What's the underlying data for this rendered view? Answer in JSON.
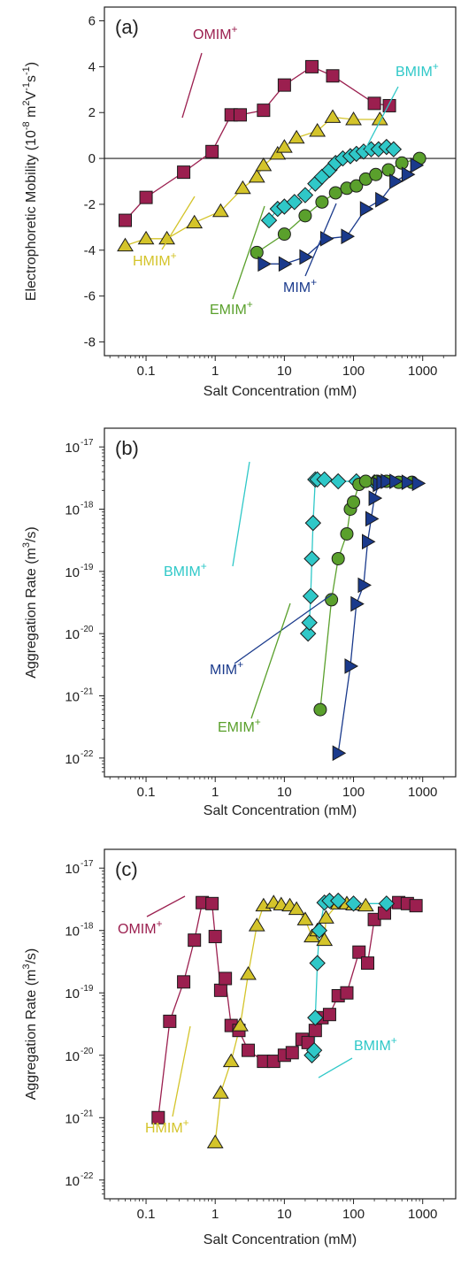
{
  "chart_data": [
    {
      "type": "scatter",
      "panel_label": "(a)",
      "ylabel": "Electrophoretic Mobility (10^-8 m^2 V^-1 s^-1)",
      "ylabel_parts": {
        "main": "Electrophoretic Mobility (10",
        "exp1": "-8",
        "mid": " m",
        "exp2": "2",
        "v": "V",
        "exp3": "-1",
        "s": "s",
        "exp4": "-1",
        "end": ")"
      },
      "xlabel": "Salt Concentration (mM)",
      "xscale": "log",
      "yscale": "linear",
      "xlim": [
        0.025,
        3000
      ],
      "ylim": [
        -8.6,
        6.6
      ],
      "xticks": [
        0.1,
        1,
        10,
        100,
        1000
      ],
      "xtick_labels": [
        "0.1",
        "1",
        "10",
        "100",
        "1000"
      ],
      "yticks": [
        -8,
        -6,
        -4,
        -2,
        0,
        2,
        4,
        6
      ],
      "ytick_labels": [
        "-8",
        "-6",
        "-4",
        "-2",
        "0",
        "2",
        "4",
        "6"
      ],
      "zero_line": true,
      "series": [
        {
          "name": "OMIM+",
          "label": "OMIM",
          "color": "#9b1f4f",
          "marker": "square",
          "x": [
            0.05,
            0.1,
            0.35,
            0.9,
            1.7,
            2.3,
            5,
            10,
            25,
            50,
            200,
            330
          ],
          "y": [
            -2.7,
            -1.7,
            -0.6,
            0.3,
            1.9,
            1.9,
            2.1,
            3.2,
            4.0,
            3.6,
            2.4,
            2.3
          ]
        },
        {
          "name": "HMIM+",
          "label": "HMIM",
          "color": "#d4c42a",
          "marker": "triangle-up",
          "x": [
            0.05,
            0.1,
            0.2,
            0.5,
            1.2,
            2.5,
            4,
            5,
            8,
            10,
            15,
            30,
            50,
            100,
            240
          ],
          "y": [
            -3.8,
            -3.5,
            -3.5,
            -2.8,
            -2.3,
            -1.3,
            -0.8,
            -0.3,
            0.2,
            0.5,
            0.9,
            1.2,
            1.8,
            1.7,
            1.7
          ]
        },
        {
          "name": "BMIM+",
          "label": "BMIM",
          "color": "#2fc8c8",
          "marker": "diamond",
          "x": [
            6,
            8,
            10,
            14,
            20,
            28,
            35,
            45,
            55,
            70,
            90,
            110,
            140,
            180,
            230,
            300,
            380
          ],
          "y": [
            -2.7,
            -2.2,
            -2.1,
            -1.9,
            -1.6,
            -1.1,
            -0.8,
            -0.5,
            -0.2,
            0.0,
            0.1,
            0.2,
            0.3,
            0.4,
            0.4,
            0.5,
            0.4
          ]
        },
        {
          "name": "EMIM+",
          "label": "EMIM",
          "color": "#5aa02c",
          "marker": "circle",
          "x": [
            4,
            10,
            20,
            35,
            55,
            80,
            110,
            150,
            210,
            320,
            500,
            900
          ],
          "y": [
            -4.1,
            -3.3,
            -2.5,
            -1.9,
            -1.5,
            -1.3,
            -1.2,
            -0.9,
            -0.7,
            -0.5,
            -0.2,
            0.0
          ]
        },
        {
          "name": "MIM+",
          "label": "MIM",
          "color": "#1a3a8c",
          "marker": "triangle-right",
          "x": [
            5,
            10,
            20,
            40,
            80,
            150,
            250,
            400,
            600,
            800
          ],
          "y": [
            -4.6,
            -4.6,
            -4.3,
            -3.5,
            -3.4,
            -2.2,
            -1.8,
            -1.0,
            -0.7,
            -0.3
          ]
        }
      ],
      "annotations": [
        {
          "text": "OMIM",
          "sup": "+",
          "color": "#9b1f4f"
        },
        {
          "text": "BMIM",
          "sup": "+",
          "color": "#2fc8c8"
        },
        {
          "text": "HMIM",
          "sup": "+",
          "color": "#d4c42a"
        },
        {
          "text": "EMIM",
          "sup": "+",
          "color": "#5aa02c"
        },
        {
          "text": "MIM",
          "sup": "+",
          "color": "#1a3a8c"
        }
      ]
    },
    {
      "type": "scatter",
      "panel_label": "(b)",
      "ylabel": "Aggregation Rate (m^3/s)",
      "ylabel_parts": {
        "main": "Aggregation Rate (m",
        "exp": "3",
        "end": "/s)"
      },
      "xlabel": "Salt Concentration (mM)",
      "xscale": "log",
      "yscale": "log",
      "xlim": [
        0.025,
        3000
      ],
      "ylim": [
        5e-23,
        2e-17
      ],
      "xticks": [
        0.1,
        1,
        10,
        100,
        1000
      ],
      "xtick_labels": [
        "0.1",
        "1",
        "10",
        "100",
        "1000"
      ],
      "yticks": [
        1e-22,
        1e-21,
        1e-20,
        1e-19,
        1e-18,
        1e-17
      ],
      "ytick_labels": [
        "10",
        "10",
        "10",
        "10",
        "10",
        "10"
      ],
      "ytick_exponents": [
        "-22",
        "-21",
        "-20",
        "-19",
        "-18",
        "-17"
      ],
      "series": [
        {
          "name": "BMIM+",
          "label": "BMIM",
          "color": "#2fc8c8",
          "marker": "diamond",
          "x": [
            22,
            23,
            24,
            25,
            26,
            28,
            30,
            38,
            60,
            110,
            200
          ],
          "y": [
            1e-20,
            1.5e-20,
            4e-20,
            1.6e-19,
            6e-19,
            3e-18,
            3e-18,
            3e-18,
            2.8e-18,
            2.8e-18,
            2.7e-18
          ]
        },
        {
          "name": "EMIM+",
          "label": "EMIM",
          "color": "#5aa02c",
          "marker": "circle",
          "x": [
            33,
            48,
            60,
            80,
            90,
            100,
            120,
            150,
            220,
            300,
            450,
            700
          ],
          "y": [
            6e-22,
            3.5e-20,
            1.6e-19,
            4e-19,
            1e-18,
            1.3e-18,
            2.5e-18,
            2.8e-18,
            2.8e-18,
            2.8e-18,
            2.7e-18,
            2.7e-18
          ]
        },
        {
          "name": "MIM+",
          "label": "MIM",
          "color": "#1a3a8c",
          "marker": "triangle-right",
          "x": [
            60,
            90,
            110,
            140,
            160,
            180,
            200,
            230,
            260,
            300,
            400,
            600,
            850
          ],
          "y": [
            1.2e-22,
            3e-21,
            3e-20,
            6e-20,
            3e-19,
            7e-19,
            1.5e-18,
            2.5e-18,
            2.7e-18,
            2.8e-18,
            2.8e-18,
            2.7e-18,
            2.6e-18
          ]
        }
      ],
      "annotations": [
        {
          "text": "BMIM",
          "sup": "+",
          "color": "#2fc8c8"
        },
        {
          "text": "MIM",
          "sup": "+",
          "color": "#1a3a8c"
        },
        {
          "text": "EMIM",
          "sup": "+",
          "color": "#5aa02c"
        }
      ]
    },
    {
      "type": "scatter",
      "panel_label": "(c)",
      "ylabel": "Aggregation Rate (m^3/s)",
      "ylabel_parts": {
        "main": "Aggregation Rate (m",
        "exp": "3",
        "end": "/s)"
      },
      "xlabel": "Salt Concentration (mM)",
      "xscale": "log",
      "yscale": "log",
      "xlim": [
        0.025,
        3000
      ],
      "ylim": [
        5e-23,
        2e-17
      ],
      "xticks": [
        0.1,
        1,
        10,
        100,
        1000
      ],
      "xtick_labels": [
        "0.1",
        "1",
        "10",
        "100",
        "1000"
      ],
      "yticks": [
        1e-22,
        1e-21,
        1e-20,
        1e-19,
        1e-18,
        1e-17
      ],
      "ytick_labels": [
        "10",
        "10",
        "10",
        "10",
        "10",
        "10"
      ],
      "ytick_exponents": [
        "-22",
        "-21",
        "-20",
        "-19",
        "-18",
        "-17"
      ],
      "series": [
        {
          "name": "OMIM+",
          "label": "OMIM",
          "color": "#9b1f4f",
          "marker": "square",
          "x": [
            0.15,
            0.22,
            0.35,
            0.5,
            0.65,
            0.9,
            1.0,
            1.2,
            1.4,
            1.7,
            2.2,
            3,
            5,
            7,
            10,
            13,
            18,
            22,
            28,
            35,
            45,
            60,
            80,
            120,
            160,
            200,
            280,
            450,
            600,
            800
          ],
          "y": [
            1e-21,
            3.5e-20,
            1.5e-19,
            7e-19,
            2.8e-18,
            2.7e-18,
            8e-19,
            1.1e-19,
            1.7e-19,
            3e-20,
            2.5e-20,
            1.2e-20,
            8e-21,
            8e-21,
            1e-20,
            1.1e-20,
            1.8e-20,
            1.6e-20,
            2.5e-20,
            4e-20,
            4.5e-20,
            9e-20,
            1e-19,
            4.5e-19,
            3e-19,
            1.5e-18,
            1.9e-18,
            2.8e-18,
            2.7e-18,
            2.5e-18
          ]
        },
        {
          "name": "HMIM+",
          "label": "HMIM",
          "color": "#d4c42a",
          "marker": "triangle-up",
          "x": [
            1.0,
            1.2,
            1.7,
            2.3,
            3.0,
            4,
            5,
            7,
            9,
            12,
            15,
            20,
            25,
            30,
            38,
            40,
            60,
            80,
            100,
            150
          ],
          "y": [
            4e-22,
            2.5e-21,
            8e-21,
            3e-20,
            2e-19,
            1.2e-18,
            2.5e-18,
            2.8e-18,
            2.6e-18,
            2.5e-18,
            2.2e-18,
            1.5e-18,
            8e-19,
            1e-18,
            7e-19,
            1.6e-18,
            2.7e-18,
            2.7e-18,
            2.6e-18,
            2.5e-18
          ]
        },
        {
          "name": "BMIM+",
          "label": "BMIM",
          "color": "#2fc8c8",
          "marker": "diamond",
          "x": [
            25,
            27,
            28,
            30,
            32,
            38,
            45,
            60,
            100,
            300
          ],
          "y": [
            1e-20,
            1.2e-20,
            4e-20,
            3e-19,
            1e-18,
            2.8e-18,
            3e-18,
            3e-18,
            2.7e-18,
            2.7e-18
          ]
        }
      ],
      "annotations": [
        {
          "text": "OMIM",
          "sup": "+",
          "color": "#9b1f4f"
        },
        {
          "text": "BMIM",
          "sup": "+",
          "color": "#2fc8c8"
        },
        {
          "text": "HMIM",
          "sup": "+",
          "color": "#d4c42a"
        }
      ]
    }
  ]
}
